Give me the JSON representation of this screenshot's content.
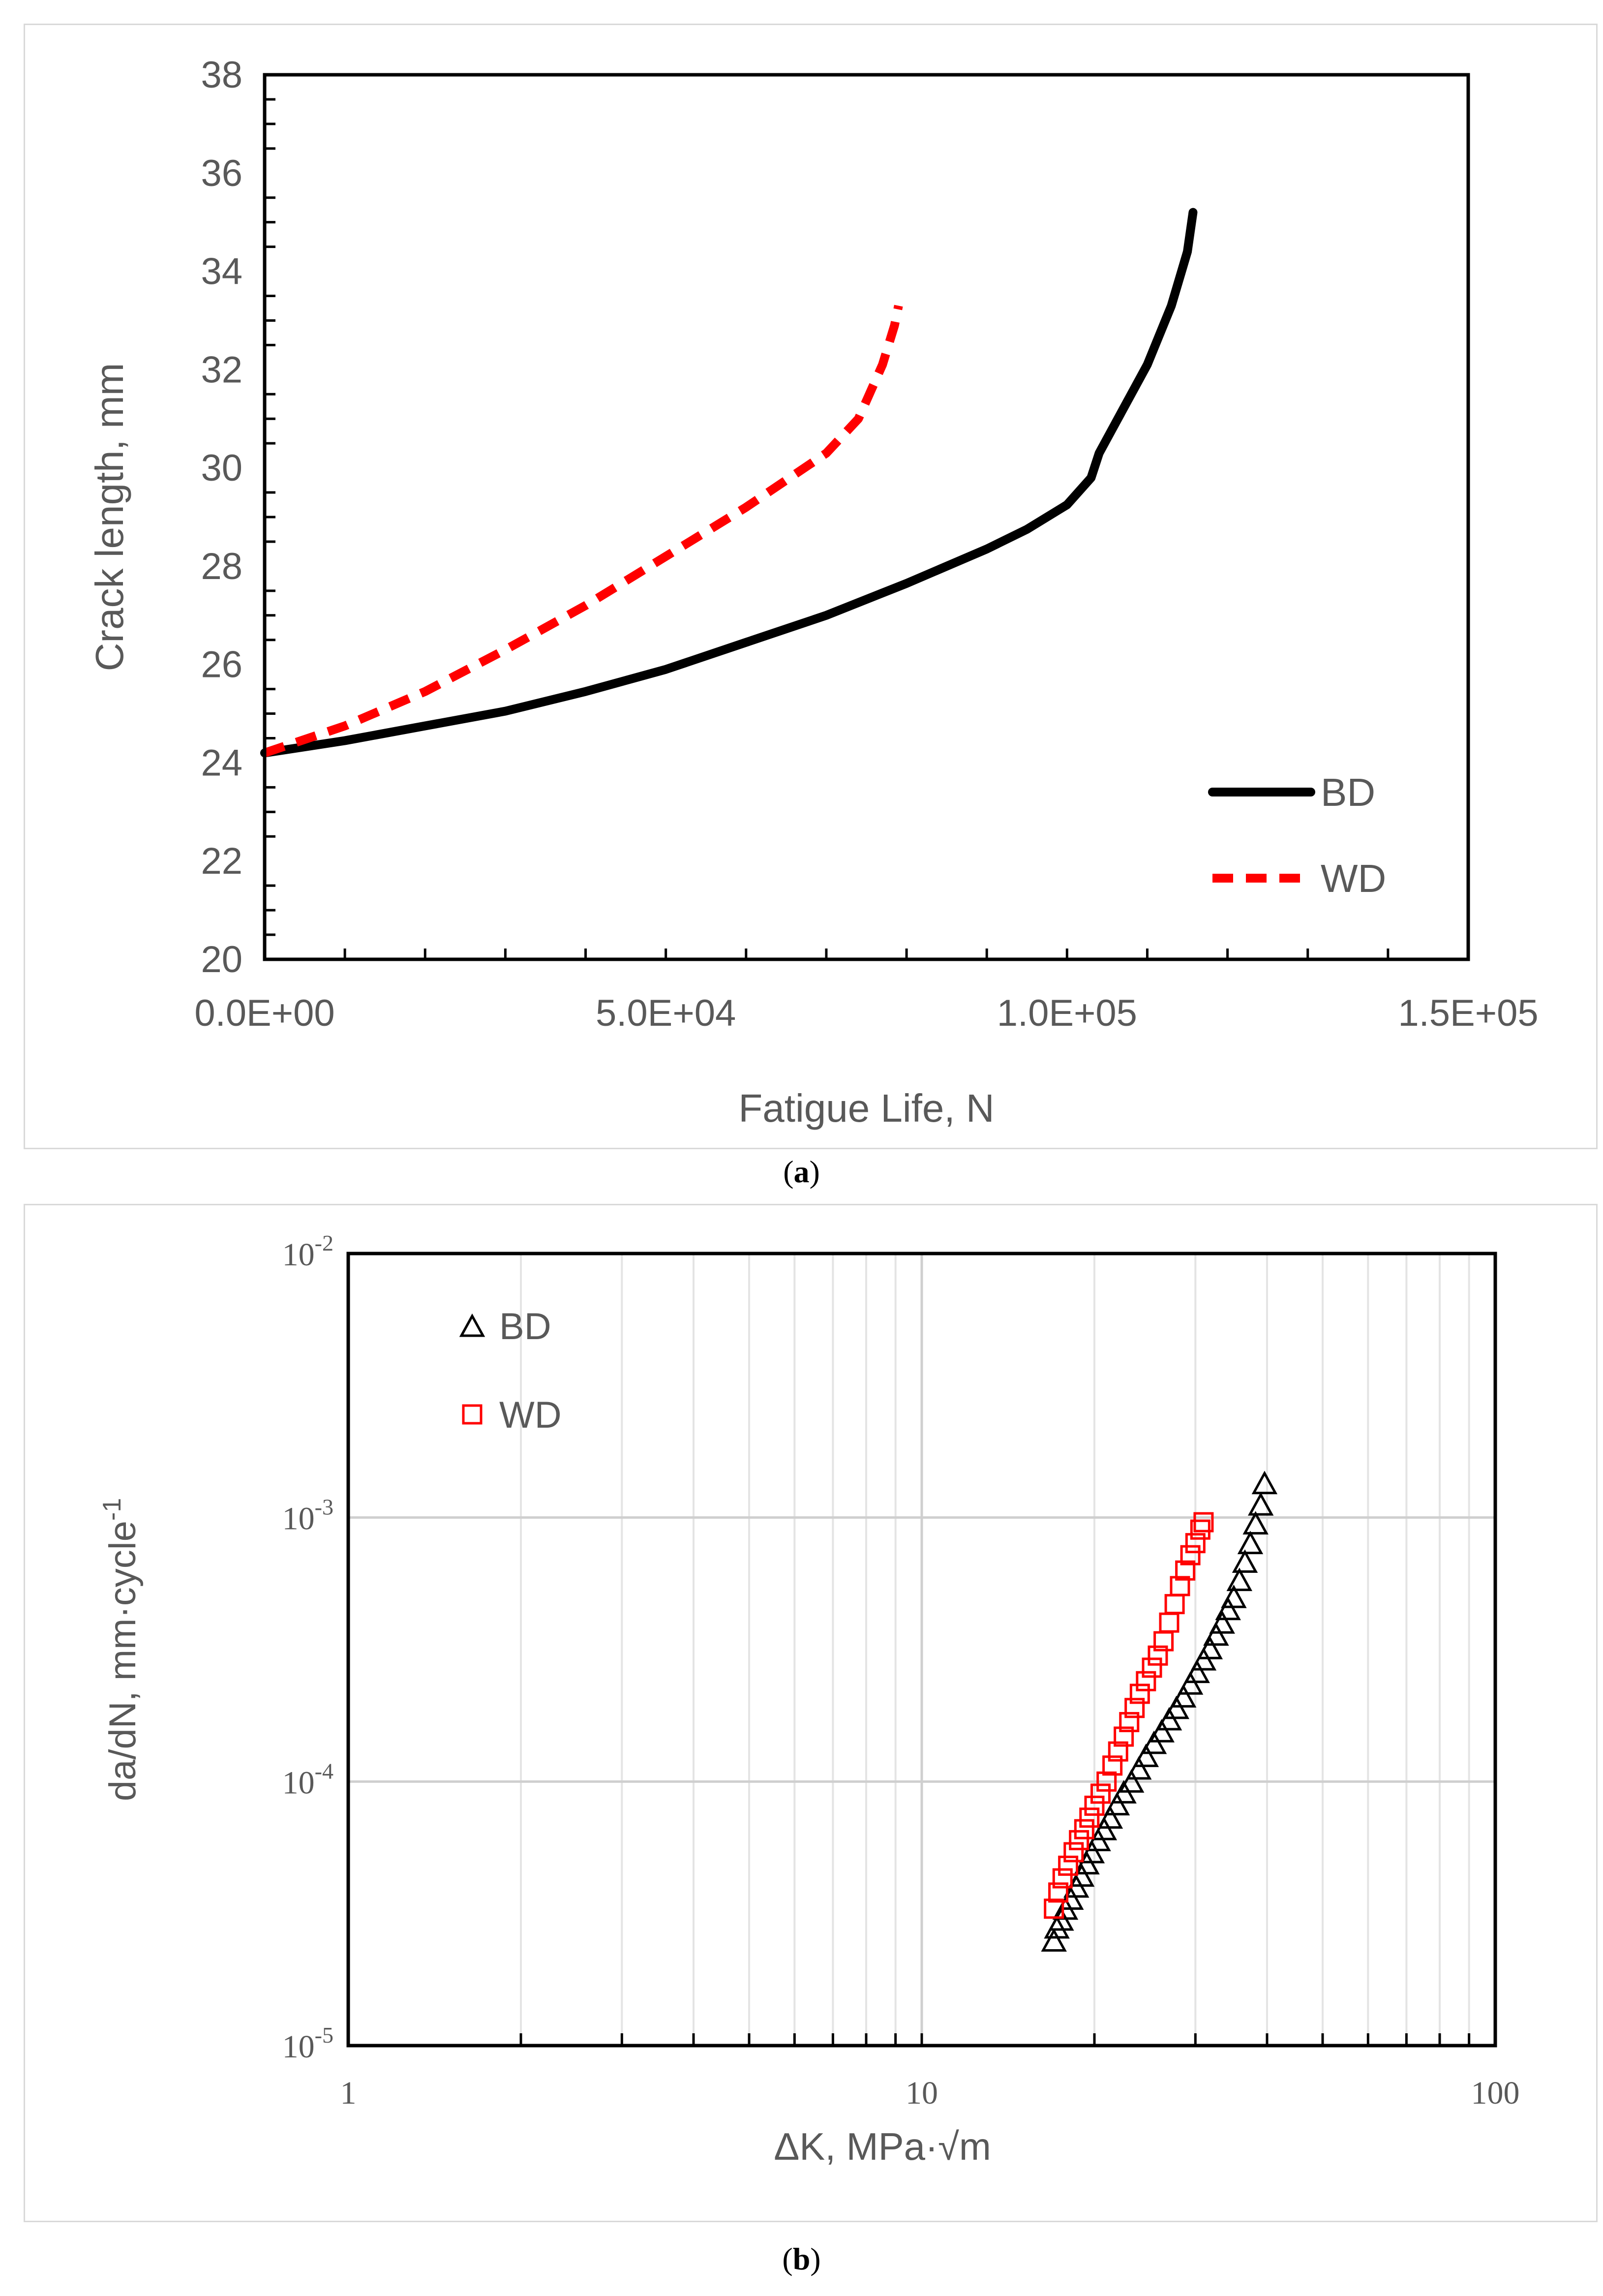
{
  "figure": {
    "captions": [
      {
        "open": "(",
        "letter": "a",
        "close": ")"
      },
      {
        "open": "(",
        "letter": "b",
        "close": ")"
      }
    ]
  },
  "chart_data": [
    {
      "type": "line",
      "title": "",
      "xlabel": "Fatigue Life, N",
      "ylabel": "Crack length, mm",
      "xlim": [
        0,
        150000
      ],
      "ylim": [
        20,
        38
      ],
      "x_ticks": [
        0,
        50000,
        100000,
        150000
      ],
      "x_tick_labels": [
        "0.0E+00",
        "5.0E+04",
        "1.0E+05",
        "1.5E+05"
      ],
      "y_ticks": [
        20,
        22,
        24,
        26,
        28,
        30,
        32,
        34,
        36,
        38
      ],
      "y_tick_labels": [
        "20",
        "22",
        "24",
        "26",
        "28",
        "30",
        "32",
        "34",
        "36",
        "38"
      ],
      "grid": false,
      "legend": "bottom-right",
      "colors": {
        "BD": "#000000",
        "WD": "#ff0000"
      },
      "series": [
        {
          "name": "BD",
          "style": "solid",
          "x": [
            0,
            10000,
            20000,
            30000,
            40000,
            50000,
            60000,
            70000,
            80000,
            90000,
            95000,
            100000,
            103000,
            104000,
            106000,
            110000,
            113000,
            115000,
            115700
          ],
          "y": [
            24.2,
            24.45,
            24.75,
            25.05,
            25.45,
            25.9,
            26.45,
            27.0,
            27.65,
            28.35,
            28.75,
            29.25,
            29.8,
            30.3,
            30.9,
            32.1,
            33.3,
            34.4,
            35.2
          ]
        },
        {
          "name": "WD",
          "style": "dashed",
          "x": [
            0,
            10000,
            20000,
            30000,
            40000,
            50000,
            60000,
            70000,
            74000,
            77000,
            78500,
            79000
          ],
          "y": [
            24.2,
            24.75,
            25.45,
            26.3,
            27.2,
            28.2,
            29.2,
            30.3,
            31.0,
            32.1,
            32.9,
            33.3
          ]
        }
      ]
    },
    {
      "type": "scatter",
      "title": "",
      "xlabel": "ΔK, MPa·√m",
      "ylabel": "da/dN, mm·cycle",
      "ylabel_superscript": "-1",
      "x_scale": "log",
      "y_scale": "log",
      "xlim": [
        1,
        100
      ],
      "ylim": [
        1e-05,
        0.01
      ],
      "x_tick_labels": [
        "1",
        "10",
        "100"
      ],
      "y_tick_labels": [
        {
          "base": "10",
          "exp": "-5"
        },
        {
          "base": "10",
          "exp": "-4"
        },
        {
          "base": "10",
          "exp": "-3"
        },
        {
          "base": "10",
          "exp": "-2"
        }
      ],
      "grid": true,
      "legend": "top-left",
      "colors": {
        "BD": "#000000",
        "WD": "#ff0000"
      },
      "series": [
        {
          "name": "BD",
          "marker": "triangle",
          "x": [
            17.0,
            17.2,
            17.5,
            17.8,
            18.2,
            18.6,
            19.0,
            19.4,
            19.8,
            20.3,
            20.8,
            21.3,
            21.9,
            22.5,
            23.2,
            23.9,
            24.6,
            25.4,
            26.2,
            27.0,
            27.8,
            28.6,
            29.4,
            30.2,
            31.0,
            31.8,
            32.6,
            33.4,
            34.2,
            35.0,
            35.8,
            36.6,
            37.4,
            38.2,
            39.0,
            39.6
          ],
          "y": [
            2.5e-05,
            2.8e-05,
            3e-05,
            3.3e-05,
            3.6e-05,
            4e-05,
            4.4e-05,
            4.9e-05,
            5.4e-05,
            6e-05,
            6.6e-05,
            7.3e-05,
            8.2e-05,
            9.1e-05,
            0.0001,
            0.000112,
            0.000125,
            0.00014,
            0.000155,
            0.000172,
            0.00019,
            0.00021,
            0.000235,
            0.00026,
            0.00029,
            0.00032,
            0.00036,
            0.0004,
            0.00045,
            0.0005,
            0.00058,
            0.00068,
            0.0008,
            0.00095,
            0.00112,
            0.00135
          ]
        },
        {
          "name": "WD",
          "marker": "square",
          "x": [
            17.0,
            17.3,
            17.6,
            18.0,
            18.4,
            18.8,
            19.2,
            19.6,
            20.0,
            20.5,
            21.0,
            21.5,
            22.0,
            22.5,
            23.0,
            23.5,
            24.0,
            24.6,
            25.2,
            25.8,
            26.4,
            27.0,
            27.6,
            28.2,
            28.8,
            29.4,
            30.0,
            30.6,
            31.0
          ],
          "y": [
            3.3e-05,
            3.8e-05,
            4.3e-05,
            4.8e-05,
            5.4e-05,
            6e-05,
            6.6e-05,
            7.3e-05,
            8.1e-05,
            9e-05,
            0.0001,
            0.000115,
            0.00013,
            0.000148,
            0.000168,
            0.00019,
            0.000215,
            0.00024,
            0.00027,
            0.0003,
            0.00034,
            0.0004,
            0.00047,
            0.00055,
            0.00063,
            0.00072,
            0.0008,
            0.0009,
            0.00096
          ]
        }
      ]
    }
  ]
}
